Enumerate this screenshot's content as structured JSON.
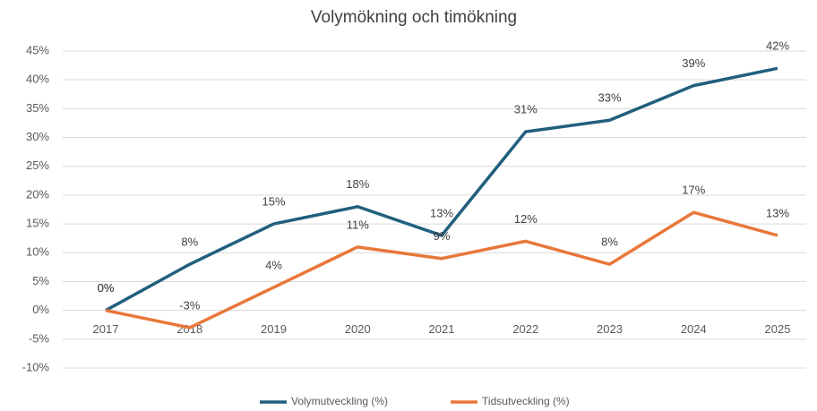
{
  "chart_data": {
    "type": "line",
    "title": "Volymökning och timökning",
    "categories": [
      "2017",
      "2018",
      "2019",
      "2020",
      "2021",
      "2022",
      "2023",
      "2024",
      "2025"
    ],
    "series": [
      {
        "name": "Volymutveckling (%)",
        "color": "#215f7e",
        "values": [
          0,
          8,
          15,
          18,
          13,
          31,
          33,
          39,
          42
        ],
        "value_labels": [
          "0%",
          "8%",
          "15%",
          "18%",
          "13%",
          "31%",
          "33%",
          "39%",
          "42%"
        ]
      },
      {
        "name": "Tidsutveckling (%)",
        "color": "#e8773a",
        "values": [
          0,
          -3,
          4,
          11,
          9,
          12,
          8,
          17,
          13
        ],
        "value_labels": [
          "0%",
          "-3%",
          "4%",
          "11%",
          "9%",
          "12%",
          "8%",
          "17%",
          "13%"
        ]
      }
    ],
    "ylim": [
      -10,
      45
    ],
    "yticks": [
      {
        "value": -10,
        "label": "-10%"
      },
      {
        "value": -5,
        "label": "-5%"
      },
      {
        "value": 0,
        "label": "0%"
      },
      {
        "value": 5,
        "label": "5%"
      },
      {
        "value": 10,
        "label": "10%"
      },
      {
        "value": 15,
        "label": "15%"
      },
      {
        "value": 20,
        "label": "20%"
      },
      {
        "value": 25,
        "label": "25%"
      },
      {
        "value": 30,
        "label": "30%"
      },
      {
        "value": 35,
        "label": "35%"
      },
      {
        "value": 40,
        "label": "40%"
      },
      {
        "value": 45,
        "label": "45%"
      }
    ],
    "grid": true,
    "legend": "bottom"
  }
}
